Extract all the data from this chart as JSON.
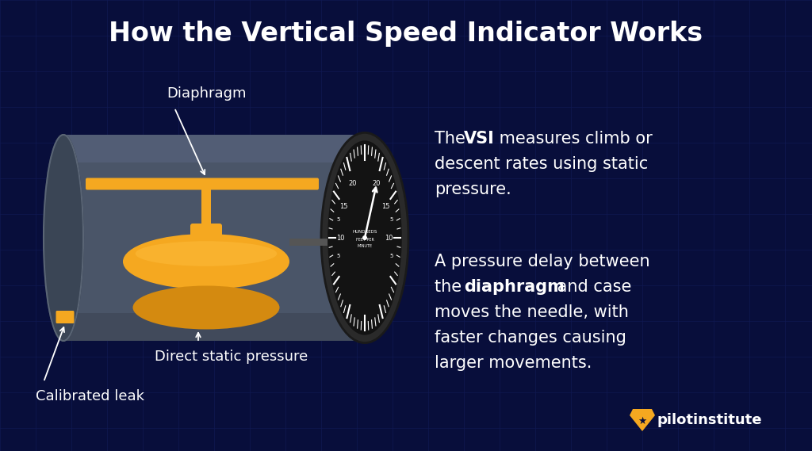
{
  "title": "How the Vertical Speed Indicator Works",
  "title_fontsize": 24,
  "title_color": "#ffffff",
  "bg_color": "#080e3b",
  "grid_color": "#111a55",
  "cyl_body_color": "#4a5568",
  "cyl_dark_color": "#3a4050",
  "cyl_light_color": "#5a6580",
  "diaphragm_bar_color": "#f5a820",
  "disk_top_color": "#f5a820",
  "disk_bot_color": "#d48a10",
  "disk_highlight": "#ffc040",
  "stem_color": "#f5a820",
  "gauge_bg_color": "#111111",
  "gauge_face_color": "#1a1a1a",
  "text_color": "#ffffff",
  "leak_color": "#f5a820",
  "label_fontsize": 13,
  "body_fontsize": 15,
  "logo_text": "pilotinstitute",
  "label_diaphragm": "Diaphragm",
  "label_direct": "Direct static pressure",
  "label_calibrated": "Calibrated leak"
}
